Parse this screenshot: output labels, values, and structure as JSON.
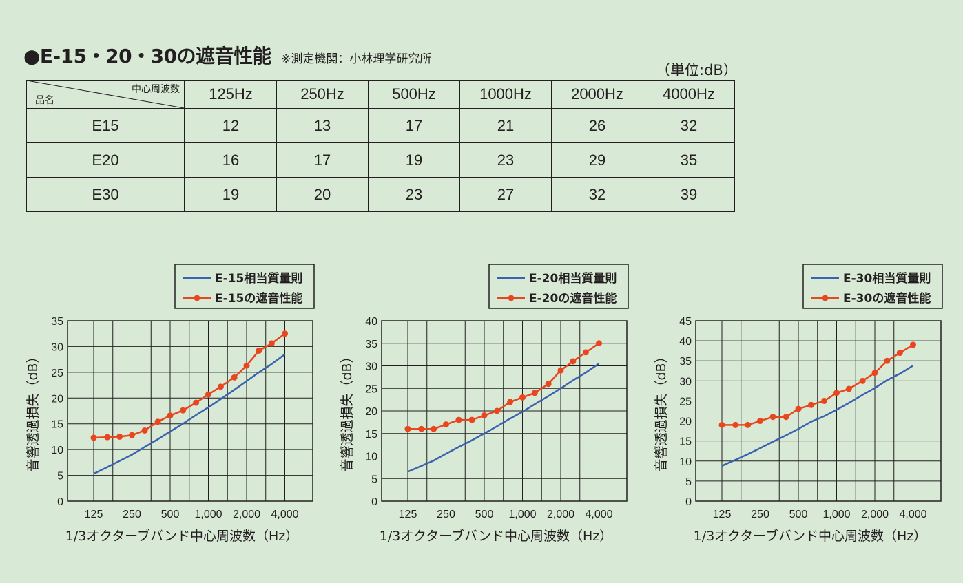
{
  "header": {
    "title": "●E-15・20・30の遮音性能",
    "note": "※測定機関：小林理学研究所",
    "unit": "（単位:dB）"
  },
  "table": {
    "corner_top": "中心周波数",
    "corner_bottom": "品名",
    "columns": [
      "125Hz",
      "250Hz",
      "500Hz",
      "1000Hz",
      "2000Hz",
      "4000Hz"
    ],
    "rows": [
      {
        "name": "E15",
        "values": [
          "12",
          "13",
          "17",
          "21",
          "26",
          "32"
        ]
      },
      {
        "name": "E20",
        "values": [
          "16",
          "17",
          "19",
          "23",
          "29",
          "35"
        ]
      },
      {
        "name": "E30",
        "values": [
          "19",
          "20",
          "23",
          "27",
          "32",
          "39"
        ]
      }
    ]
  },
  "colors": {
    "background": "#d8ead6",
    "blue_line": "#3a62b0",
    "red_line": "#e8461e",
    "grid": "#231f20"
  },
  "chart_data": [
    {
      "type": "line",
      "xlabel": "1/3オクターブバンド中心周波数（Hz）",
      "ylabel": "音響透過損失（dB）",
      "ylim": [
        0,
        35
      ],
      "yticks": [
        "0",
        "5",
        "10",
        "15",
        "20",
        "25",
        "30",
        "35"
      ],
      "xtick_labels": [
        "125",
        "250",
        "500",
        "1,000",
        "2,000",
        "4,000"
      ],
      "x": [
        125,
        160,
        200,
        250,
        315,
        400,
        500,
        630,
        800,
        1000,
        1250,
        1600,
        2000,
        2500,
        3150,
        4000
      ],
      "grid": true,
      "legend_position": "top-right",
      "series": [
        {
          "name": "E-15相当質量則",
          "color": "#3a62b0",
          "marker": false,
          "values": [
            5.3,
            6.6,
            7.8,
            9.0,
            10.5,
            12.0,
            13.5,
            15.0,
            16.7,
            18.2,
            19.8,
            21.6,
            23.3,
            25.0,
            26.6,
            28.5
          ]
        },
        {
          "name": "E-15の遮音性能",
          "color": "#e8461e",
          "marker": true,
          "values": [
            12.3,
            12.4,
            12.5,
            12.8,
            13.7,
            15.4,
            16.6,
            17.6,
            19.1,
            20.7,
            22.2,
            24.0,
            26.3,
            29.2,
            30.6,
            32.5
          ]
        }
      ]
    },
    {
      "type": "line",
      "xlabel": "1/3オクターブバンド中心周波数（Hz）",
      "ylabel": "音響透過損失（dB）",
      "ylim": [
        0,
        40
      ],
      "yticks": [
        "0",
        "5",
        "10",
        "15",
        "20",
        "25",
        "30",
        "35",
        "40"
      ],
      "xtick_labels": [
        "125",
        "250",
        "500",
        "1,000",
        "2,000",
        "4,000"
      ],
      "x": [
        125,
        160,
        200,
        250,
        315,
        400,
        500,
        630,
        800,
        1000,
        1250,
        1600,
        2000,
        2500,
        3150,
        4000
      ],
      "grid": true,
      "legend_position": "top-right",
      "series": [
        {
          "name": "E-20相当質量則",
          "color": "#3a62b0",
          "marker": false,
          "values": [
            6.5,
            7.8,
            9.0,
            10.5,
            12.0,
            13.5,
            15.0,
            16.6,
            18.3,
            19.8,
            21.5,
            23.3,
            25.0,
            26.8,
            28.5,
            30.5
          ]
        },
        {
          "name": "E-20の遮音性能",
          "color": "#e8461e",
          "marker": true,
          "values": [
            16,
            16,
            16,
            17,
            18,
            18,
            19,
            20,
            22,
            23,
            24,
            26,
            29,
            31,
            33,
            35
          ]
        }
      ]
    },
    {
      "type": "line",
      "xlabel": "1/3オクターブバンド中心周波数（Hz）",
      "ylabel": "音響透過損失（dB）",
      "ylim": [
        0,
        45
      ],
      "yticks": [
        "0",
        "5",
        "10",
        "15",
        "20",
        "25",
        "30",
        "35",
        "40",
        "45"
      ],
      "xtick_labels": [
        "125",
        "250",
        "500",
        "1,000",
        "2,000",
        "4,000"
      ],
      "x": [
        125,
        160,
        200,
        250,
        315,
        400,
        500,
        630,
        800,
        1000,
        1250,
        1600,
        2000,
        2500,
        3150,
        4000
      ],
      "grid": true,
      "legend_position": "top-right",
      "series": [
        {
          "name": "E-30相当質量則",
          "color": "#3a62b0",
          "marker": false,
          "values": [
            8.8,
            10.3,
            11.7,
            13.2,
            14.8,
            16.4,
            18.0,
            19.8,
            21.2,
            22.8,
            24.5,
            26.5,
            28.2,
            30.2,
            31.8,
            33.8
          ]
        },
        {
          "name": "E-30の遮音性能",
          "color": "#e8461e",
          "marker": true,
          "values": [
            19,
            19,
            19,
            20,
            21,
            21,
            23,
            24,
            25,
            27,
            28,
            30,
            32,
            35,
            37,
            39
          ]
        }
      ]
    }
  ]
}
